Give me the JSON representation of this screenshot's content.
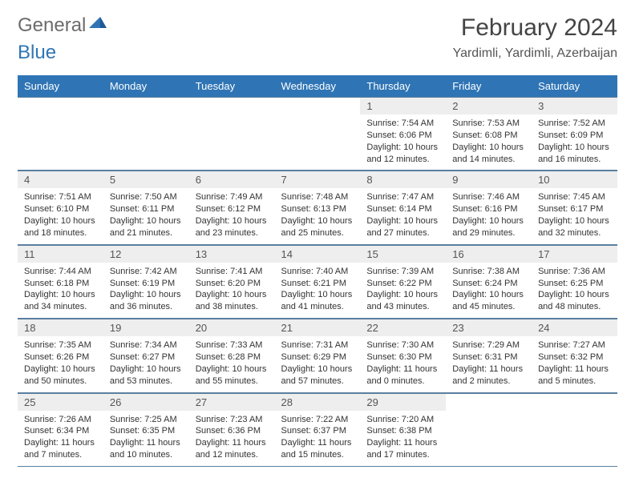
{
  "logo": {
    "word1": "General",
    "word2": "Blue"
  },
  "title": "February 2024",
  "location": "Yardimli, Yardimli, Azerbaijan",
  "colors": {
    "header_bg": "#2f75b5",
    "header_text": "#ffffff",
    "daynum_bg": "#eeeeee",
    "border": "#5a7fa0",
    "page_bg": "#ffffff",
    "body_text": "#333333",
    "logo_gray": "#6b6b6b",
    "logo_blue": "#2f75b5"
  },
  "typography": {
    "title_fontsize": 30,
    "location_fontsize": 16,
    "header_fontsize": 13,
    "daynum_fontsize": 13,
    "body_fontsize": 11
  },
  "week_headers": [
    "Sunday",
    "Monday",
    "Tuesday",
    "Wednesday",
    "Thursday",
    "Friday",
    "Saturday"
  ],
  "weeks": [
    [
      {
        "num": "",
        "sunrise": "",
        "sunset": "",
        "daylight": ""
      },
      {
        "num": "",
        "sunrise": "",
        "sunset": "",
        "daylight": ""
      },
      {
        "num": "",
        "sunrise": "",
        "sunset": "",
        "daylight": ""
      },
      {
        "num": "",
        "sunrise": "",
        "sunset": "",
        "daylight": ""
      },
      {
        "num": "1",
        "sunrise": "Sunrise: 7:54 AM",
        "sunset": "Sunset: 6:06 PM",
        "daylight": "Daylight: 10 hours and 12 minutes."
      },
      {
        "num": "2",
        "sunrise": "Sunrise: 7:53 AM",
        "sunset": "Sunset: 6:08 PM",
        "daylight": "Daylight: 10 hours and 14 minutes."
      },
      {
        "num": "3",
        "sunrise": "Sunrise: 7:52 AM",
        "sunset": "Sunset: 6:09 PM",
        "daylight": "Daylight: 10 hours and 16 minutes."
      }
    ],
    [
      {
        "num": "4",
        "sunrise": "Sunrise: 7:51 AM",
        "sunset": "Sunset: 6:10 PM",
        "daylight": "Daylight: 10 hours and 18 minutes."
      },
      {
        "num": "5",
        "sunrise": "Sunrise: 7:50 AM",
        "sunset": "Sunset: 6:11 PM",
        "daylight": "Daylight: 10 hours and 21 minutes."
      },
      {
        "num": "6",
        "sunrise": "Sunrise: 7:49 AM",
        "sunset": "Sunset: 6:12 PM",
        "daylight": "Daylight: 10 hours and 23 minutes."
      },
      {
        "num": "7",
        "sunrise": "Sunrise: 7:48 AM",
        "sunset": "Sunset: 6:13 PM",
        "daylight": "Daylight: 10 hours and 25 minutes."
      },
      {
        "num": "8",
        "sunrise": "Sunrise: 7:47 AM",
        "sunset": "Sunset: 6:14 PM",
        "daylight": "Daylight: 10 hours and 27 minutes."
      },
      {
        "num": "9",
        "sunrise": "Sunrise: 7:46 AM",
        "sunset": "Sunset: 6:16 PM",
        "daylight": "Daylight: 10 hours and 29 minutes."
      },
      {
        "num": "10",
        "sunrise": "Sunrise: 7:45 AM",
        "sunset": "Sunset: 6:17 PM",
        "daylight": "Daylight: 10 hours and 32 minutes."
      }
    ],
    [
      {
        "num": "11",
        "sunrise": "Sunrise: 7:44 AM",
        "sunset": "Sunset: 6:18 PM",
        "daylight": "Daylight: 10 hours and 34 minutes."
      },
      {
        "num": "12",
        "sunrise": "Sunrise: 7:42 AM",
        "sunset": "Sunset: 6:19 PM",
        "daylight": "Daylight: 10 hours and 36 minutes."
      },
      {
        "num": "13",
        "sunrise": "Sunrise: 7:41 AM",
        "sunset": "Sunset: 6:20 PM",
        "daylight": "Daylight: 10 hours and 38 minutes."
      },
      {
        "num": "14",
        "sunrise": "Sunrise: 7:40 AM",
        "sunset": "Sunset: 6:21 PM",
        "daylight": "Daylight: 10 hours and 41 minutes."
      },
      {
        "num": "15",
        "sunrise": "Sunrise: 7:39 AM",
        "sunset": "Sunset: 6:22 PM",
        "daylight": "Daylight: 10 hours and 43 minutes."
      },
      {
        "num": "16",
        "sunrise": "Sunrise: 7:38 AM",
        "sunset": "Sunset: 6:24 PM",
        "daylight": "Daylight: 10 hours and 45 minutes."
      },
      {
        "num": "17",
        "sunrise": "Sunrise: 7:36 AM",
        "sunset": "Sunset: 6:25 PM",
        "daylight": "Daylight: 10 hours and 48 minutes."
      }
    ],
    [
      {
        "num": "18",
        "sunrise": "Sunrise: 7:35 AM",
        "sunset": "Sunset: 6:26 PM",
        "daylight": "Daylight: 10 hours and 50 minutes."
      },
      {
        "num": "19",
        "sunrise": "Sunrise: 7:34 AM",
        "sunset": "Sunset: 6:27 PM",
        "daylight": "Daylight: 10 hours and 53 minutes."
      },
      {
        "num": "20",
        "sunrise": "Sunrise: 7:33 AM",
        "sunset": "Sunset: 6:28 PM",
        "daylight": "Daylight: 10 hours and 55 minutes."
      },
      {
        "num": "21",
        "sunrise": "Sunrise: 7:31 AM",
        "sunset": "Sunset: 6:29 PM",
        "daylight": "Daylight: 10 hours and 57 minutes."
      },
      {
        "num": "22",
        "sunrise": "Sunrise: 7:30 AM",
        "sunset": "Sunset: 6:30 PM",
        "daylight": "Daylight: 11 hours and 0 minutes."
      },
      {
        "num": "23",
        "sunrise": "Sunrise: 7:29 AM",
        "sunset": "Sunset: 6:31 PM",
        "daylight": "Daylight: 11 hours and 2 minutes."
      },
      {
        "num": "24",
        "sunrise": "Sunrise: 7:27 AM",
        "sunset": "Sunset: 6:32 PM",
        "daylight": "Daylight: 11 hours and 5 minutes."
      }
    ],
    [
      {
        "num": "25",
        "sunrise": "Sunrise: 7:26 AM",
        "sunset": "Sunset: 6:34 PM",
        "daylight": "Daylight: 11 hours and 7 minutes."
      },
      {
        "num": "26",
        "sunrise": "Sunrise: 7:25 AM",
        "sunset": "Sunset: 6:35 PM",
        "daylight": "Daylight: 11 hours and 10 minutes."
      },
      {
        "num": "27",
        "sunrise": "Sunrise: 7:23 AM",
        "sunset": "Sunset: 6:36 PM",
        "daylight": "Daylight: 11 hours and 12 minutes."
      },
      {
        "num": "28",
        "sunrise": "Sunrise: 7:22 AM",
        "sunset": "Sunset: 6:37 PM",
        "daylight": "Daylight: 11 hours and 15 minutes."
      },
      {
        "num": "29",
        "sunrise": "Sunrise: 7:20 AM",
        "sunset": "Sunset: 6:38 PM",
        "daylight": "Daylight: 11 hours and 17 minutes."
      },
      {
        "num": "",
        "sunrise": "",
        "sunset": "",
        "daylight": ""
      },
      {
        "num": "",
        "sunrise": "",
        "sunset": "",
        "daylight": ""
      }
    ]
  ]
}
